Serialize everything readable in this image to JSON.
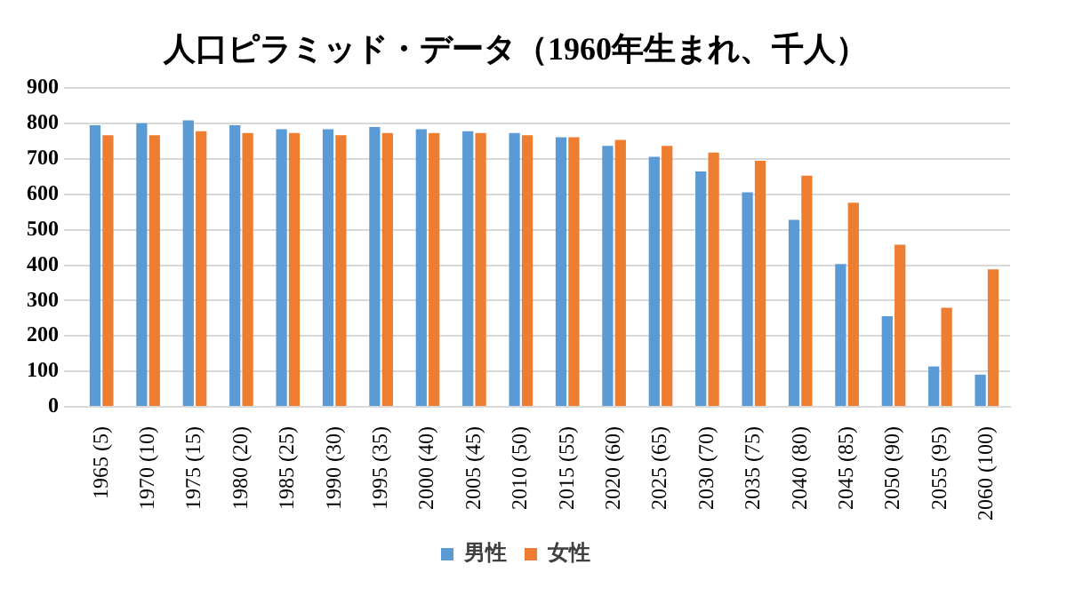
{
  "chart_data": {
    "type": "bar",
    "title": "人口ピラミッド・データ（1960年生まれ、千人）",
    "categories": [
      "1965 (5)",
      "1970 (10)",
      "1975 (15)",
      "1980 (20)",
      "1985 (25)",
      "1990 (30)",
      "1995 (35)",
      "2000 (40)",
      "2005 (45)",
      "2010 (50)",
      "2015 (55)",
      "2020 (60)",
      "2025 (65)",
      "2030 (70)",
      "2035 (75)",
      "2040 (80)",
      "2045 (85)",
      "2050 (90)",
      "2055 (95)",
      "2060 (100)"
    ],
    "series": [
      {
        "name": "男性",
        "color": "#5b9bd5",
        "values": [
          795,
          801,
          809,
          795,
          784,
          784,
          790,
          784,
          778,
          773,
          761,
          737,
          706,
          665,
          606,
          528,
          403,
          256,
          114,
          91
        ]
      },
      {
        "name": "女性",
        "color": "#ed7d31",
        "values": [
          767,
          767,
          778,
          773,
          773,
          767,
          773,
          773,
          773,
          767,
          761,
          754,
          737,
          718,
          695,
          653,
          576,
          458,
          280,
          388
        ]
      }
    ],
    "ylim": [
      0,
      900
    ],
    "yticks": [
      0,
      100,
      200,
      300,
      400,
      500,
      600,
      700,
      800,
      900
    ],
    "grid": "y",
    "legend": "bottom"
  }
}
